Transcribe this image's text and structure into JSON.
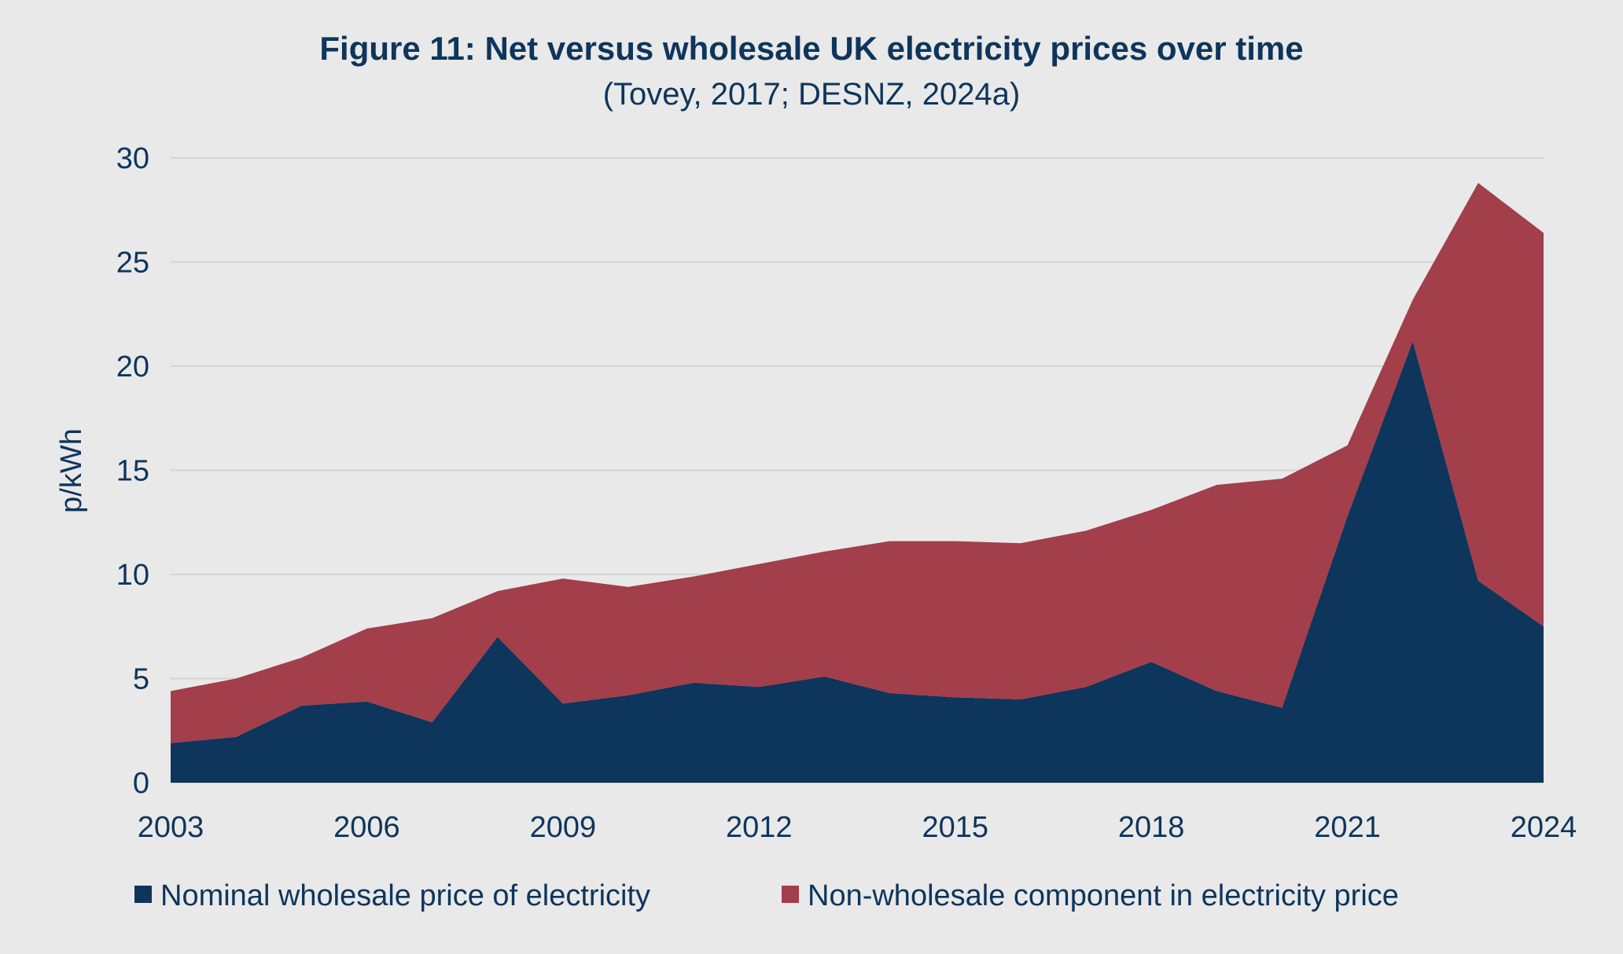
{
  "chart_data": {
    "type": "area",
    "stacked": true,
    "title": "Figure 11: Net versus wholesale UK electricity prices over time",
    "subtitle": "(Tovey, 2017; DESNZ, 2024a)",
    "xlabel": "",
    "ylabel": "p/kWh",
    "ylim": [
      0,
      30
    ],
    "yticks": [
      "0",
      "5",
      "10",
      "15",
      "20",
      "25",
      "30"
    ],
    "xticks": [
      "2003",
      "2006",
      "2009",
      "2012",
      "2015",
      "2018",
      "2021",
      "2024"
    ],
    "grid": true,
    "legend_position": "bottom",
    "x": [
      2003,
      2004,
      2005,
      2006,
      2007,
      2008,
      2009,
      2010,
      2011,
      2012,
      2013,
      2014,
      2015,
      2016,
      2017,
      2018,
      2019,
      2020,
      2021,
      2022,
      2023,
      2024
    ],
    "series": [
      {
        "name": "Nominal wholesale price of electricity",
        "color": "#0e355c",
        "values": [
          1.9,
          2.2,
          3.7,
          3.9,
          2.9,
          7.0,
          3.8,
          4.2,
          4.8,
          4.6,
          5.1,
          4.3,
          4.1,
          4.0,
          4.6,
          5.8,
          4.4,
          3.6,
          12.8,
          21.2,
          9.7,
          7.5
        ]
      },
      {
        "name": "Non-wholesale component in electricity price",
        "color": "#a33e4b",
        "values": [
          2.5,
          2.8,
          2.3,
          3.5,
          5.0,
          2.2,
          6.0,
          5.2,
          5.1,
          5.9,
          6.0,
          7.3,
          7.5,
          7.5,
          7.5,
          7.3,
          9.9,
          11.0,
          3.4,
          2.0,
          19.1,
          18.9
        ]
      }
    ]
  }
}
